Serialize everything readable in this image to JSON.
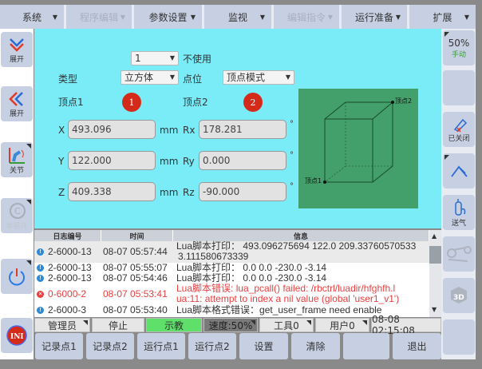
{
  "menu": [
    {
      "label": "系统",
      "enabled": true
    },
    {
      "label": "程序编辑",
      "enabled": false
    },
    {
      "label": "参数设置",
      "enabled": true
    },
    {
      "label": "监视",
      "enabled": true
    },
    {
      "label": "编辑指令",
      "enabled": false
    },
    {
      "label": "运行准备",
      "enabled": true
    },
    {
      "label": "扩展",
      "enabled": true
    }
  ],
  "left": {
    "expand1": "展开",
    "expand2": "展开",
    "joint": "关节",
    "cycle": "单循环"
  },
  "right": {
    "speed": "50%",
    "mode": "手动",
    "closed": "已关闭",
    "gas": "送气"
  },
  "form": {
    "index": "1",
    "unused": "不使用",
    "type_label": "类型",
    "type_value": "立方体",
    "point_label": "点位",
    "point_value": "顶点模式",
    "vertex1_label": "顶点1",
    "vertex1_num": "1",
    "vertex2_label": "顶点2",
    "vertex2_num": "2",
    "x_label": "X",
    "x": "493.096",
    "y_label": "Y",
    "y": "122.000",
    "z_label": "Z",
    "z": "409.338",
    "unit": "mm",
    "rx_label": "Rx",
    "rx": "178.281",
    "ry_label": "Ry",
    "ry": "0.000",
    "rz_label": "Rz",
    "rz": "-90.000",
    "deg": "°",
    "img_v1": "顶点1",
    "img_v2": "顶点2"
  },
  "log": {
    "headers": [
      "日志编号",
      "时间",
      "信息"
    ],
    "rows": [
      {
        "code": "2-6000-13",
        "time": "08-07 05:57:44",
        "msg1": "Lua脚本打印： 493.096275694 122.0 209.33760570533",
        "msg2": "3.111580673339",
        "level": "info"
      },
      {
        "code": "2-6000-13",
        "time": "08-07 05:55:07",
        "msg1": "Lua脚本打印： 0.0 0.0 -230.0 -3.14",
        "level": "info"
      },
      {
        "code": "2-6000-13",
        "time": "08-07 05:54:46",
        "msg1": "Lua脚本打印： 0.0 0.0 -230.0 -3.14",
        "level": "info"
      },
      {
        "code": "0-6000-2",
        "time": "08-07 05:53:41",
        "msg1": "Lua脚本错误: lua_pcall() failed: /rbctrl/luadir/hfghfh.l",
        "msg2": "ua:11: attempt to index a nil value (global 'user1_v1')",
        "level": "error"
      },
      {
        "code": "2-6000-3",
        "time": "08-07 05:53:40",
        "msg1": "Lua脚本格式错误：get_user_frame need enable",
        "level": "info"
      }
    ]
  },
  "status": {
    "user": "管理员",
    "state": "停止",
    "mode": "示教",
    "speed": "速度:50%",
    "tool": "工具0",
    "userframe": "用户0",
    "datetime": "08-08 02:15:08"
  },
  "buttons": [
    "记录点1",
    "记录点2",
    "运行点1",
    "运行点2",
    "设置",
    "清除",
    "",
    "退出"
  ],
  "colors": {
    "panel": "#7aecf8",
    "button": "#c7d0e2",
    "teach": "#5ee06a",
    "error": "#e84040",
    "image": "#44a06a"
  }
}
